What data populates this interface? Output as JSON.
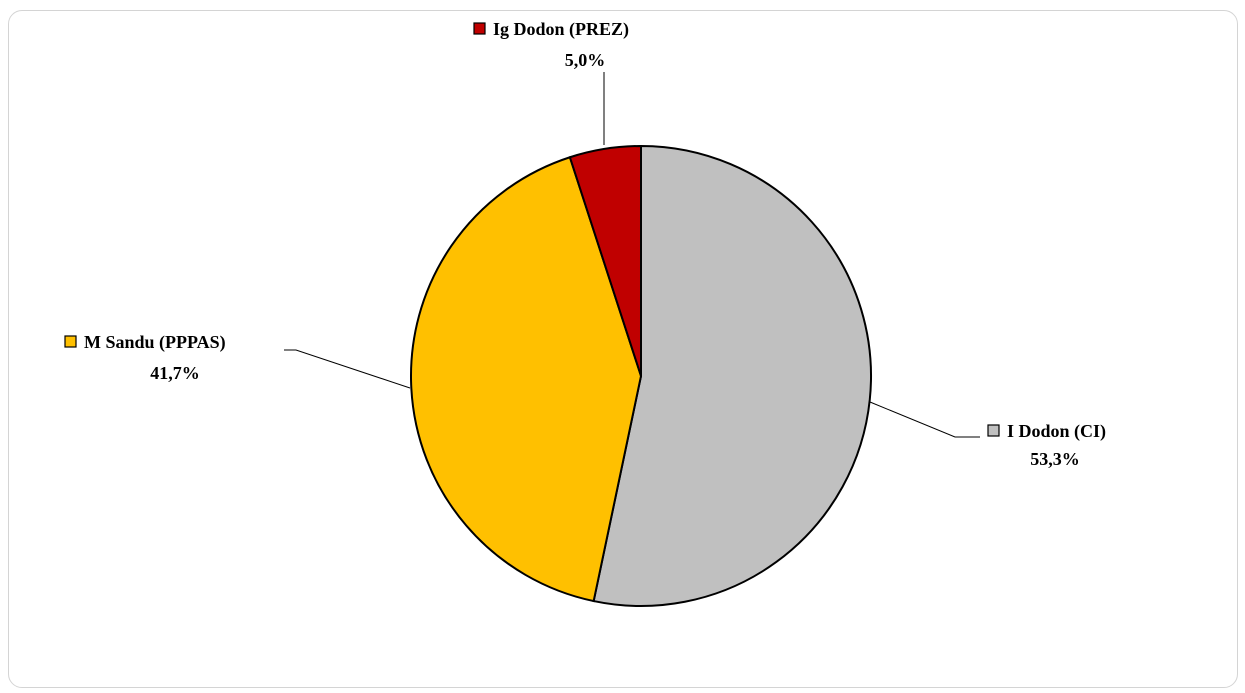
{
  "chart_data": {
    "type": "pie",
    "title": "",
    "slices": [
      {
        "label": "I Dodon (CI)",
        "value": 53.3,
        "value_label": "53,3%",
        "color": "#c0c0c0"
      },
      {
        "label": "M Sandu (PPPAS)",
        "value": 41.7,
        "value_label": "41,7%",
        "color": "#ffc000"
      },
      {
        "label": "Ig Dodon (PREZ)",
        "value": 5.0,
        "value_label": "5,0%",
        "color": "#c00000"
      }
    ],
    "legend": "none",
    "data_labels": "outside-with-leader-lines"
  }
}
